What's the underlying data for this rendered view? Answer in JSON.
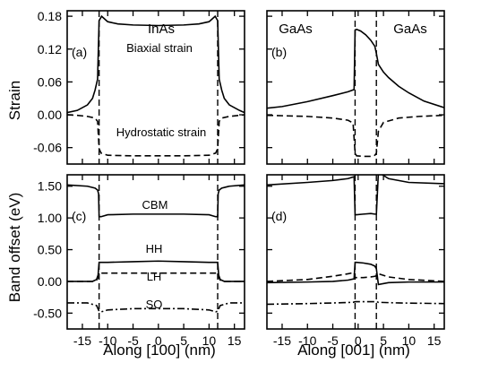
{
  "chart_data": [
    {
      "panel": "a",
      "type": "line",
      "panel_label": "(a)",
      "region_labels": [
        "InAs"
      ],
      "xlim": [
        -18,
        17
      ],
      "ylim": [
        -0.09,
        0.19
      ],
      "yticks": [
        0.18,
        0.12,
        0.06,
        0.0,
        -0.06
      ],
      "ytick_labels": [
        "0.18",
        "0.12",
        "0.06",
        "0.00",
        "-0.06"
      ],
      "xticks": [
        -15,
        -10,
        -5,
        0,
        5,
        10,
        15
      ],
      "xtick_labels": [],
      "ylabel": "Strain",
      "xlabel": "",
      "interfaces": [
        -11.7,
        11.7
      ],
      "series": [
        {
          "name": "Biaxial strain",
          "style": "solid",
          "x": [
            -18,
            -16,
            -14,
            -13,
            -12.5,
            -12,
            -11.7,
            -11.2,
            -10.5,
            -10,
            -8,
            -5,
            0,
            5,
            8,
            10,
            10.5,
            11.2,
            11.7,
            12,
            12.5,
            13,
            14,
            16,
            17
          ],
          "y": [
            0.004,
            0.008,
            0.018,
            0.03,
            0.045,
            0.065,
            0.172,
            0.18,
            0.174,
            0.17,
            0.166,
            0.164,
            0.163,
            0.164,
            0.166,
            0.17,
            0.174,
            0.18,
            0.172,
            0.065,
            0.045,
            0.03,
            0.018,
            0.008,
            0.004
          ]
        },
        {
          "name": "Hydrostatic strain",
          "style": "dashed",
          "x": [
            -18,
            -16,
            -14,
            -12.5,
            -12,
            -11.7,
            -11.3,
            -10,
            -5,
            0,
            5,
            10,
            11.3,
            11.7,
            12,
            12.5,
            14,
            16,
            17
          ],
          "y": [
            0.0,
            -0.001,
            -0.003,
            -0.006,
            -0.012,
            -0.062,
            -0.07,
            -0.074,
            -0.075,
            -0.075,
            -0.075,
            -0.074,
            -0.07,
            -0.062,
            -0.012,
            -0.006,
            -0.003,
            -0.001,
            0.0
          ]
        }
      ],
      "annotations": [
        "Biaxial strain",
        "Hydrostatic strain"
      ]
    },
    {
      "panel": "b",
      "type": "line",
      "panel_label": "(b)",
      "region_labels": [
        "GaAs",
        "GaAs"
      ],
      "xlim": [
        -18,
        17
      ],
      "ylim": [
        -0.09,
        0.19
      ],
      "yticks": [
        0.18,
        0.12,
        0.06,
        0.0,
        -0.06
      ],
      "ytick_labels": [],
      "xticks": [
        -15,
        -10,
        -5,
        0,
        5,
        10,
        15
      ],
      "xtick_labels": [],
      "interfaces": [
        -0.6,
        3.6
      ],
      "series": [
        {
          "name": "Biaxial strain",
          "style": "solid",
          "x": [
            -18,
            -15,
            -10,
            -5,
            -2,
            -0.8,
            -0.6,
            -0.3,
            0.5,
            1.5,
            2.5,
            3.3,
            3.6,
            4,
            5,
            6,
            8,
            10,
            13,
            17
          ],
          "y": [
            0.012,
            0.015,
            0.024,
            0.035,
            0.042,
            0.046,
            0.155,
            0.156,
            0.153,
            0.146,
            0.136,
            0.125,
            0.112,
            0.092,
            0.078,
            0.068,
            0.052,
            0.04,
            0.025,
            0.013
          ]
        },
        {
          "name": "Hydrostatic strain",
          "style": "dashed",
          "x": [
            -18,
            -10,
            -5,
            -2,
            -1,
            -0.6,
            -0.3,
            1,
            2.5,
            3.3,
            3.6,
            4,
            5,
            8,
            12,
            17
          ],
          "y": [
            -0.001,
            -0.003,
            -0.006,
            -0.01,
            -0.015,
            -0.07,
            -0.075,
            -0.076,
            -0.076,
            -0.074,
            -0.07,
            -0.03,
            -0.014,
            -0.006,
            -0.003,
            -0.001
          ]
        }
      ]
    },
    {
      "panel": "c",
      "type": "line",
      "panel_label": "(c)",
      "xlim": [
        -18,
        17
      ],
      "ylim": [
        -0.75,
        1.68
      ],
      "yticks": [
        1.5,
        1.0,
        0.5,
        0.0,
        -0.5
      ],
      "ytick_labels": [
        "1.50",
        "1.00",
        "0.50",
        "0.00",
        "-0.50"
      ],
      "xticks": [
        -15,
        -10,
        -5,
        0,
        5,
        10,
        15
      ],
      "xtick_labels": [
        "-15",
        "-10",
        "-5",
        "0",
        "5",
        "10",
        "15"
      ],
      "ylabel": "Band offset (eV)",
      "xlabel": "Along [100] (nm)",
      "interfaces": [
        -11.7,
        11.7
      ],
      "series": [
        {
          "name": "CBM",
          "style": "solid",
          "x": [
            -18,
            -14,
            -12.5,
            -12,
            -11.8,
            -11.7,
            -11.3,
            -10,
            -5,
            0,
            5,
            10,
            11.3,
            11.7,
            11.8,
            12,
            12.5,
            14,
            17
          ],
          "y": [
            1.52,
            1.5,
            1.47,
            1.44,
            1.38,
            1.02,
            1.02,
            1.05,
            1.06,
            1.06,
            1.06,
            1.05,
            1.02,
            1.02,
            1.38,
            1.44,
            1.47,
            1.5,
            1.52
          ]
        },
        {
          "name": "HH",
          "style": "solid",
          "x": [
            -18,
            -13,
            -12.2,
            -11.9,
            -11.7,
            -11.3,
            -10,
            -5,
            0,
            5,
            10,
            11.3,
            11.7,
            11.9,
            12.2,
            13,
            17
          ],
          "y": [
            0.0,
            0.0,
            0.03,
            0.1,
            0.3,
            0.3,
            0.3,
            0.31,
            0.32,
            0.31,
            0.3,
            0.3,
            0.3,
            0.1,
            0.03,
            0.0,
            0.0
          ]
        },
        {
          "name": "LH",
          "style": "dashed",
          "x": [
            -18,
            -13,
            -12.2,
            -11.9,
            -11.7,
            -11.3,
            -5,
            0,
            5,
            11.3,
            11.7,
            11.9,
            12.2,
            13,
            17
          ],
          "y": [
            0.0,
            0.0,
            0.02,
            0.06,
            0.13,
            0.13,
            0.13,
            0.13,
            0.13,
            0.13,
            0.13,
            0.06,
            0.02,
            0.0,
            0.0
          ]
        },
        {
          "name": "SO",
          "style": "dashdot",
          "x": [
            -18,
            -14,
            -12.2,
            -11.7,
            -11.3,
            -10,
            -5,
            0,
            5,
            10,
            11.3,
            11.7,
            12.2,
            14,
            17
          ],
          "y": [
            -0.34,
            -0.34,
            -0.38,
            -0.47,
            -0.48,
            -0.45,
            -0.43,
            -0.43,
            -0.43,
            -0.45,
            -0.48,
            -0.47,
            -0.38,
            -0.34,
            -0.34
          ]
        }
      ],
      "annotations": [
        "CBM",
        "HH",
        "LH",
        "SO"
      ]
    },
    {
      "panel": "d",
      "type": "line",
      "panel_label": "(d)",
      "xlim": [
        -18,
        17
      ],
      "ylim": [
        -0.75,
        1.68
      ],
      "yticks": [
        1.5,
        1.0,
        0.5,
        0.0,
        -0.5
      ],
      "ytick_labels": [],
      "xticks": [
        -15,
        -10,
        -5,
        0,
        5,
        10,
        15
      ],
      "xtick_labels": [
        "-15",
        "-10",
        "-5",
        "0",
        "5",
        "10",
        "15"
      ],
      "xlabel": "Along [001] (nm)",
      "interfaces": [
        -0.6,
        3.6
      ],
      "series": [
        {
          "name": "CBM",
          "style": "solid",
          "x": [
            -18,
            -10,
            -5,
            -2,
            -0.8,
            -0.6,
            -0.3,
            1,
            2.5,
            3.3,
            3.6,
            4,
            6,
            10,
            17
          ],
          "y": [
            1.52,
            1.56,
            1.59,
            1.62,
            1.65,
            1.05,
            1.05,
            1.06,
            1.07,
            1.06,
            1.06,
            1.72,
            1.62,
            1.56,
            1.54
          ]
        },
        {
          "name": "HH",
          "style": "solid",
          "x": [
            -18,
            -10,
            -5,
            -2,
            -0.8,
            -0.6,
            -0.3,
            1,
            2.5,
            3.3,
            3.6,
            4,
            6,
            10,
            17
          ],
          "y": [
            -0.02,
            -0.01,
            0.0,
            0.02,
            0.04,
            0.3,
            0.3,
            0.29,
            0.27,
            0.24,
            0.2,
            -0.05,
            -0.02,
            -0.01,
            -0.01
          ]
        },
        {
          "name": "LH",
          "style": "dashed",
          "x": [
            -18,
            -10,
            -5,
            -2,
            -0.8,
            -0.6,
            -0.3,
            1,
            2.5,
            3.3,
            3.6,
            4,
            6,
            10,
            17
          ],
          "y": [
            0.0,
            0.03,
            0.08,
            0.12,
            0.14,
            0.06,
            0.06,
            0.06,
            0.07,
            0.08,
            0.09,
            0.12,
            0.07,
            0.03,
            0.0
          ]
        },
        {
          "name": "SO",
          "style": "dashdot",
          "x": [
            -18,
            -10,
            -5,
            -1,
            -0.6,
            0,
            2,
            3.6,
            4,
            8,
            17
          ],
          "y": [
            -0.36,
            -0.35,
            -0.34,
            -0.33,
            -0.32,
            -0.32,
            -0.32,
            -0.32,
            -0.33,
            -0.34,
            -0.35
          ]
        }
      ]
    }
  ]
}
